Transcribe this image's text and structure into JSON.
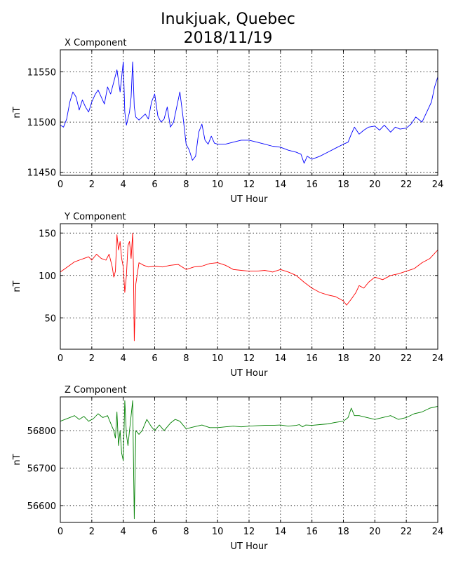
{
  "title_line1": "Inukjuak, Quebec",
  "title_line2": "2018/11/19",
  "chart_data": [
    {
      "type": "line",
      "title": "X Component",
      "xlabel": "UT Hour",
      "ylabel": "nT",
      "color": "#0000ff",
      "xlim": [
        0,
        24
      ],
      "ylim": [
        11447,
        11572
      ],
      "xticks": [
        0,
        2,
        4,
        6,
        8,
        10,
        12,
        14,
        16,
        18,
        20,
        22,
        24
      ],
      "yticks": [
        11450,
        11500,
        11550
      ],
      "grid": true,
      "series": [
        {
          "x": [
            0,
            0.2,
            0.4,
            0.6,
            0.8,
            1.0,
            1.2,
            1.4,
            1.6,
            1.8,
            2.0,
            2.2,
            2.4,
            2.6,
            2.8,
            3.0,
            3.2,
            3.4,
            3.6,
            3.8,
            4.0,
            4.1,
            4.2,
            4.4,
            4.5,
            4.6,
            4.7,
            4.8,
            5.0,
            5.2,
            5.4,
            5.6,
            5.8,
            6.0,
            6.2,
            6.4,
            6.6,
            6.8,
            7.0,
            7.2,
            7.4,
            7.6,
            7.8,
            8.0,
            8.2,
            8.4,
            8.6,
            8.8,
            9.0,
            9.2,
            9.4,
            9.6,
            9.8,
            10.0,
            10.5,
            11.0,
            11.5,
            12.0,
            12.5,
            13.0,
            13.5,
            14.0,
            14.5,
            15.0,
            15.3,
            15.5,
            15.7,
            16.0,
            16.5,
            17.0,
            17.5,
            18.0,
            18.3,
            18.5,
            18.7,
            19.0,
            19.3,
            19.6,
            20.0,
            20.3,
            20.6,
            21.0,
            21.3,
            21.6,
            22.0,
            22.3,
            22.6,
            23.0,
            23.3,
            23.6,
            23.8,
            24.0
          ],
          "y": [
            11497,
            11495,
            11503,
            11520,
            11530,
            11525,
            11512,
            11522,
            11515,
            11510,
            11520,
            11527,
            11532,
            11525,
            11518,
            11535,
            11528,
            11540,
            11552,
            11530,
            11560,
            11510,
            11497,
            11510,
            11525,
            11560,
            11515,
            11505,
            11502,
            11505,
            11508,
            11503,
            11520,
            11528,
            11506,
            11500,
            11503,
            11515,
            11495,
            11500,
            11515,
            11530,
            11505,
            11478,
            11472,
            11462,
            11466,
            11490,
            11498,
            11482,
            11478,
            11486,
            11479,
            11478,
            11478,
            11480,
            11482,
            11482,
            11480,
            11478,
            11476,
            11475,
            11472,
            11470,
            11468,
            11459,
            11466,
            11463,
            11466,
            11470,
            11474,
            11478,
            11480,
            11488,
            11495,
            11488,
            11492,
            11495,
            11496,
            11492,
            11497,
            11490,
            11495,
            11493,
            11494,
            11498,
            11505,
            11500,
            11510,
            11520,
            11535,
            11545
          ]
        }
      ]
    },
    {
      "type": "line",
      "title": "Y Component",
      "xlabel": "UT Hour",
      "ylabel": "nT",
      "color": "#ff0000",
      "xlim": [
        0,
        24
      ],
      "ylim": [
        13,
        161
      ],
      "xticks": [
        0,
        2,
        4,
        6,
        8,
        10,
        12,
        14,
        16,
        18,
        20,
        22,
        24
      ],
      "yticks": [
        50,
        100,
        150
      ],
      "grid": true,
      "series": [
        {
          "x": [
            0,
            0.3,
            0.6,
            0.9,
            1.2,
            1.5,
            1.8,
            2.0,
            2.3,
            2.6,
            2.9,
            3.1,
            3.3,
            3.4,
            3.5,
            3.6,
            3.7,
            3.8,
            3.9,
            4.0,
            4.1,
            4.2,
            4.3,
            4.4,
            4.5,
            4.6,
            4.65,
            4.7,
            4.8,
            5.0,
            5.3,
            5.6,
            6.0,
            6.5,
            7.0,
            7.5,
            8.0,
            8.5,
            9.0,
            9.5,
            10.0,
            10.5,
            11.0,
            11.5,
            12.0,
            12.5,
            13.0,
            13.5,
            14.0,
            14.5,
            15.0,
            15.5,
            16.0,
            16.5,
            17.0,
            17.5,
            18.0,
            18.2,
            18.5,
            18.8,
            19.0,
            19.3,
            19.6,
            20.0,
            20.5,
            21.0,
            21.5,
            22.0,
            22.5,
            23.0,
            23.5,
            24.0
          ],
          "y": [
            104,
            108,
            112,
            116,
            118,
            120,
            122,
            118,
            125,
            120,
            118,
            125,
            110,
            98,
            105,
            148,
            130,
            140,
            120,
            110,
            80,
            100,
            135,
            140,
            120,
            150,
            110,
            23,
            90,
            115,
            112,
            110,
            111,
            110,
            112,
            113,
            107,
            110,
            111,
            114,
            115,
            112,
            107,
            106,
            105,
            105,
            106,
            104,
            107,
            104,
            100,
            92,
            85,
            80,
            77,
            75,
            70,
            65,
            72,
            80,
            88,
            85,
            92,
            98,
            95,
            100,
            102,
            105,
            108,
            115,
            120,
            130
          ]
        }
      ]
    },
    {
      "type": "line",
      "title": "Z Component",
      "xlabel": "UT Hour",
      "ylabel": "nT",
      "color": "#008000",
      "xlim": [
        0,
        24
      ],
      "ylim": [
        56555,
        56890
      ],
      "xticks": [
        0,
        2,
        4,
        6,
        8,
        10,
        12,
        14,
        16,
        18,
        20,
        22,
        24
      ],
      "yticks": [
        56600,
        56700,
        56800
      ],
      "grid": true,
      "series": [
        {
          "x": [
            0,
            0.3,
            0.6,
            0.9,
            1.2,
            1.5,
            1.8,
            2.1,
            2.4,
            2.7,
            3.0,
            3.2,
            3.4,
            3.5,
            3.6,
            3.7,
            3.8,
            3.9,
            4.0,
            4.1,
            4.2,
            4.3,
            4.4,
            4.5,
            4.6,
            4.7,
            4.8,
            5.0,
            5.2,
            5.5,
            5.8,
            6.0,
            6.3,
            6.6,
            7.0,
            7.3,
            7.6,
            8.0,
            8.5,
            9.0,
            9.5,
            10.0,
            10.5,
            11.0,
            11.5,
            12.0,
            12.5,
            13.0,
            13.5,
            14.0,
            14.5,
            15.0,
            15.2,
            15.4,
            15.6,
            16.0,
            16.5,
            17.0,
            17.5,
            18.0,
            18.3,
            18.5,
            18.7,
            19.0,
            19.5,
            20.0,
            20.5,
            21.0,
            21.5,
            22.0,
            22.5,
            23.0,
            23.5,
            24.0
          ],
          "y": [
            56825,
            56830,
            56835,
            56840,
            56830,
            56838,
            56825,
            56832,
            56845,
            56835,
            56840,
            56820,
            56800,
            56780,
            56850,
            56760,
            56800,
            56740,
            56720,
            56880,
            56790,
            56760,
            56800,
            56840,
            56880,
            56565,
            56800,
            56790,
            56800,
            56830,
            56810,
            56800,
            56815,
            56800,
            56820,
            56830,
            56825,
            56805,
            56810,
            56815,
            56808,
            56808,
            56810,
            56812,
            56810,
            56812,
            56813,
            56814,
            56814,
            56815,
            56812,
            56814,
            56816,
            56810,
            56815,
            56814,
            56816,
            56818,
            56822,
            56825,
            56835,
            56860,
            56840,
            56840,
            56835,
            56830,
            56835,
            56840,
            56830,
            56835,
            56845,
            56850,
            56860,
            56865
          ]
        }
      ]
    }
  ]
}
